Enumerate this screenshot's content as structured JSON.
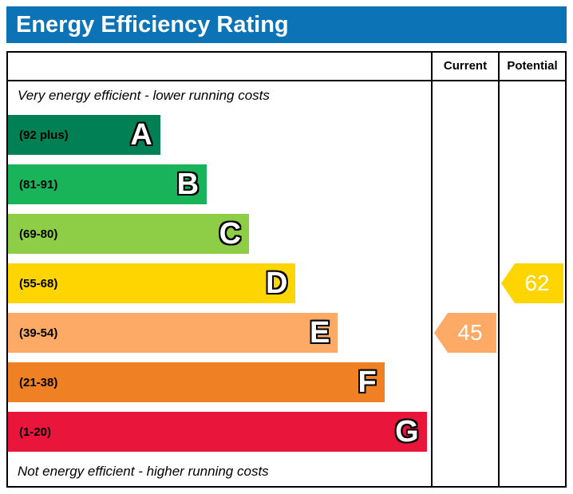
{
  "title": "Energy Efficiency Rating",
  "colors": {
    "title_bar_bg": "#0c74b6",
    "title_text": "#ffffff",
    "border": "#000000"
  },
  "columns": {
    "current": "Current",
    "potential": "Potential"
  },
  "notes": {
    "top": "Very energy efficient - lower running costs",
    "bottom": "Not energy efficient - higher running costs"
  },
  "chart_data": {
    "type": "bar",
    "orientation": "horizontal",
    "title": "Energy Efficiency Rating",
    "bands": [
      {
        "letter": "A",
        "range": "(92 plus)",
        "color": "#008054",
        "width_pct": 36
      },
      {
        "letter": "B",
        "range": "(81-91)",
        "color": "#19b459",
        "width_pct": 47
      },
      {
        "letter": "C",
        "range": "(69-80)",
        "color": "#8dce46",
        "width_pct": 57
      },
      {
        "letter": "D",
        "range": "(55-68)",
        "color": "#ffd500",
        "width_pct": 68
      },
      {
        "letter": "E",
        "range": "(39-54)",
        "color": "#fcaa65",
        "width_pct": 78
      },
      {
        "letter": "F",
        "range": "(21-38)",
        "color": "#ef8023",
        "width_pct": 89
      },
      {
        "letter": "G",
        "range": "(1-20)",
        "color": "#e9153b",
        "width_pct": 99
      }
    ],
    "current": {
      "value": 45,
      "band": "E",
      "color": "#fcaa65"
    },
    "potential": {
      "value": 62,
      "band": "D",
      "color": "#ffd500"
    }
  }
}
